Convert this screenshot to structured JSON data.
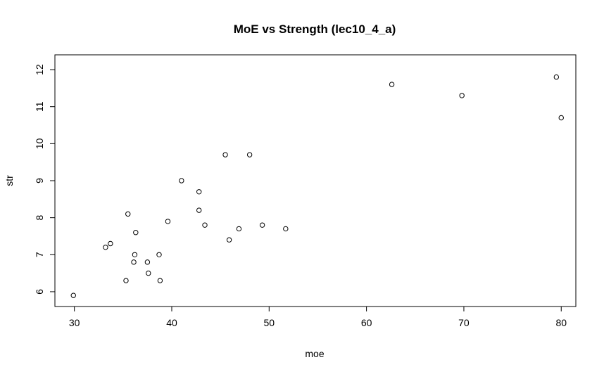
{
  "chart_data": {
    "type": "scatter",
    "title": "MoE vs Strength (lec10_4_a)",
    "xlabel": "moe",
    "ylabel": "str",
    "xlim": [
      28,
      81.5
    ],
    "ylim": [
      5.6,
      12.4
    ],
    "x_ticks": [
      30,
      40,
      50,
      60,
      70,
      80
    ],
    "y_ticks": [
      6,
      7,
      8,
      9,
      10,
      11,
      12
    ],
    "grid": false,
    "legend": "none",
    "points": [
      {
        "x": 29.9,
        "y": 5.9
      },
      {
        "x": 33.2,
        "y": 7.2
      },
      {
        "x": 33.7,
        "y": 7.3
      },
      {
        "x": 35.3,
        "y": 6.3
      },
      {
        "x": 35.5,
        "y": 8.1
      },
      {
        "x": 36.1,
        "y": 6.8
      },
      {
        "x": 36.2,
        "y": 7.0
      },
      {
        "x": 36.3,
        "y": 7.6
      },
      {
        "x": 37.5,
        "y": 6.8
      },
      {
        "x": 37.6,
        "y": 6.5
      },
      {
        "x": 38.7,
        "y": 7.0
      },
      {
        "x": 38.8,
        "y": 6.3
      },
      {
        "x": 39.6,
        "y": 7.9
      },
      {
        "x": 41.0,
        "y": 9.0
      },
      {
        "x": 42.8,
        "y": 8.7
      },
      {
        "x": 42.8,
        "y": 8.2
      },
      {
        "x": 43.4,
        "y": 7.8
      },
      {
        "x": 45.5,
        "y": 9.7
      },
      {
        "x": 45.9,
        "y": 7.4
      },
      {
        "x": 46.9,
        "y": 7.7
      },
      {
        "x": 48.0,
        "y": 9.7
      },
      {
        "x": 49.3,
        "y": 7.8
      },
      {
        "x": 51.7,
        "y": 7.7
      },
      {
        "x": 62.6,
        "y": 11.6
      },
      {
        "x": 69.8,
        "y": 11.3
      },
      {
        "x": 79.5,
        "y": 11.8
      },
      {
        "x": 80.0,
        "y": 10.7
      }
    ]
  }
}
